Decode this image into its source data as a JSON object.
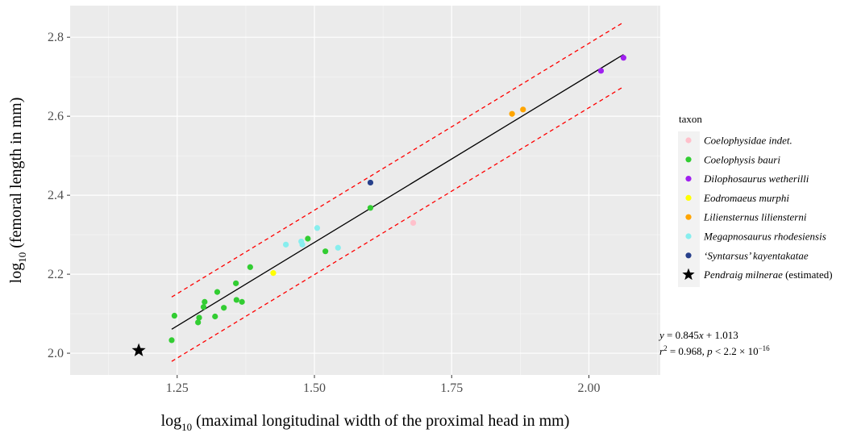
{
  "chart_data": {
    "type": "scatter",
    "xlabel_prefix": "log",
    "xlabel_sub": "10",
    "xlabel_rest": " (maximal longitudinal width of the proximal head in mm)",
    "ylabel_prefix": "log",
    "ylabel_sub": "10",
    "ylabel_rest": " (femoral length in mm)",
    "xlim": [
      1.055,
      2.13
    ],
    "ylim": [
      1.945,
      2.88
    ],
    "x_ticks": [
      1.25,
      1.5,
      1.75,
      2.0
    ],
    "x_tick_labels": [
      "1.25",
      "1.50",
      "1.75",
      "2.00"
    ],
    "y_ticks": [
      2.0,
      2.2,
      2.4,
      2.6,
      2.8
    ],
    "y_tick_labels": [
      "2.0",
      "2.2",
      "2.4",
      "2.6",
      "2.8"
    ],
    "grid": true,
    "background": "#ebebeb",
    "legend": {
      "title": "taxon",
      "position": "right",
      "entries": [
        {
          "label": "Coelophysidae indet.",
          "italic": true,
          "color": "#ffc0cb",
          "shape": "circle"
        },
        {
          "label": "Coelophysis bauri",
          "italic": true,
          "color": "#32cd32",
          "shape": "circle"
        },
        {
          "label": "Dilophosaurus wetherilli",
          "italic": true,
          "color": "#a020f0",
          "shape": "circle"
        },
        {
          "label": "Eodromaeus murphi",
          "italic": true,
          "color": "#ffff00",
          "shape": "circle"
        },
        {
          "label": "Liliensternus liliensterni",
          "italic": true,
          "color": "#ffa500",
          "shape": "circle"
        },
        {
          "label": "Megapnosaurus rhodesiensis",
          "italic": true,
          "color": "#87eeee",
          "shape": "circle"
        },
        {
          "label": "‘Syntarsus’ kayentakatae",
          "italic": true,
          "color": "#27408b",
          "shape": "circle"
        },
        {
          "label": "Pendraig milnerae",
          "italic": true,
          "label_suffix": " (estimated)",
          "color": "#000000",
          "shape": "star"
        }
      ]
    },
    "series": [
      {
        "name": "Coelophysidae indet.",
        "color": "#ffc0cb",
        "points": [
          [
            1.68,
            2.33
          ]
        ]
      },
      {
        "name": "Coelophysis bauri",
        "color": "#32cd32",
        "points": [
          [
            1.24,
            2.033
          ],
          [
            1.245,
            2.095
          ],
          [
            1.288,
            2.078
          ],
          [
            1.29,
            2.09
          ],
          [
            1.298,
            2.117
          ],
          [
            1.3,
            2.13
          ],
          [
            1.319,
            2.093
          ],
          [
            1.323,
            2.155
          ],
          [
            1.335,
            2.115
          ],
          [
            1.357,
            2.177
          ],
          [
            1.358,
            2.135
          ],
          [
            1.368,
            2.13
          ],
          [
            1.383,
            2.218
          ],
          [
            1.488,
            2.29
          ],
          [
            1.52,
            2.258
          ],
          [
            1.602,
            2.368
          ]
        ]
      },
      {
        "name": "Dilophosaurus wetherilli",
        "color": "#a020f0",
        "points": [
          [
            2.022,
            2.715
          ],
          [
            2.063,
            2.748
          ]
        ]
      },
      {
        "name": "Eodromaeus murphi",
        "color": "#ffff00",
        "points": [
          [
            1.425,
            2.203
          ]
        ]
      },
      {
        "name": "Liliensternus liliensterni",
        "color": "#ffa500",
        "points": [
          [
            1.86,
            2.606
          ],
          [
            1.88,
            2.617
          ]
        ]
      },
      {
        "name": "Megapnosaurus rhodesiensis",
        "color": "#87eeee",
        "points": [
          [
            1.448,
            2.275
          ],
          [
            1.476,
            2.283
          ],
          [
            1.478,
            2.275
          ],
          [
            1.505,
            2.317
          ],
          [
            1.543,
            2.267
          ]
        ]
      },
      {
        "name": "‘Syntarsus’ kayentakatae",
        "color": "#27408b",
        "points": [
          [
            1.602,
            2.432
          ]
        ]
      },
      {
        "name": "Pendraig milnerae",
        "color": "#000000",
        "shape": "star",
        "points": [
          [
            1.18,
            2.007
          ]
        ]
      }
    ],
    "regression": {
      "slope": 0.845,
      "intercept": 1.013,
      "x_range": [
        1.24,
        2.063
      ],
      "color": "#000000",
      "interval_color": "#ff0000",
      "interval_half_width": 0.0815
    },
    "annotation": {
      "line1_parts": [
        {
          "t": "y",
          "i": true
        },
        {
          "t": " = 0.845",
          "i": false
        },
        {
          "t": "x",
          "i": true
        },
        {
          "t": " + 1.013",
          "i": false
        }
      ],
      "line2_parts": [
        {
          "t": "r",
          "i": true
        },
        {
          "t": "2",
          "sup": true
        },
        {
          "t": " = 0.968, ",
          "i": false
        },
        {
          "t": "p",
          "i": true
        },
        {
          "t": " < 2.2 × 10",
          "i": false
        },
        {
          "t": "−16",
          "sup": true
        }
      ]
    }
  }
}
